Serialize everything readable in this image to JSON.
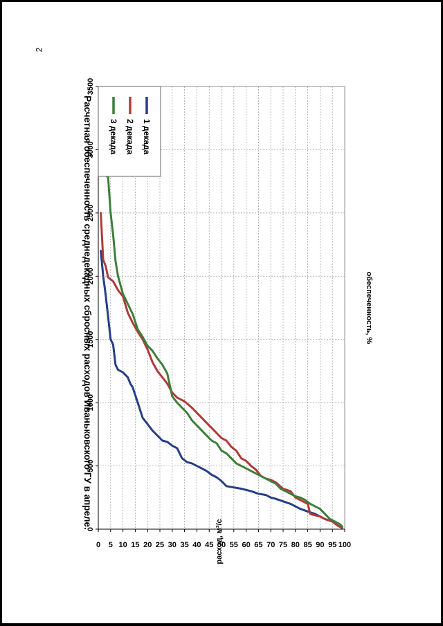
{
  "page": {
    "number": "2"
  },
  "colors": {
    "series1": "#253E86",
    "series2": "#B03A3A",
    "series3": "#3E7E3A",
    "grid": "#9A9A9A"
  },
  "chart_data": {
    "type": "line",
    "title": "Расчетная обеспеченность среднедекадных сбросных расходов Иваньковского ГУ в апреле.",
    "xlabel": "обеспеченность, %",
    "ylabel": "расход, м³/с",
    "xlim": [
      0,
      100
    ],
    "ylim": [
      0,
      3500
    ],
    "xticks": [
      "0",
      "5",
      "10",
      "15",
      "20",
      "25",
      "30",
      "35",
      "40",
      "45",
      "50",
      "55",
      "60",
      "65",
      "70",
      "75",
      "80",
      "85",
      "90",
      "95",
      "100"
    ],
    "yticks": [
      "0",
      "500",
      "1000",
      "1500",
      "2000",
      "2500",
      "3000",
      "3500"
    ],
    "grid": true,
    "legend_position": "top-right",
    "series": [
      {
        "name": "1 декада",
        "x": [
          1,
          2,
          3,
          4,
          5,
          6,
          7,
          8,
          10,
          12,
          13,
          14,
          15,
          16,
          18,
          20,
          22,
          24,
          26,
          28,
          30,
          32,
          34,
          36,
          38,
          40,
          42,
          44,
          46,
          48,
          50,
          52,
          55,
          58,
          60,
          62,
          65,
          68,
          70,
          72,
          75,
          78,
          80,
          82,
          85,
          88,
          90,
          92,
          95,
          97,
          99
        ],
        "y": [
          2200,
          2000,
          1850,
          1680,
          1500,
          1460,
          1300,
          1260,
          1240,
          1200,
          1150,
          1120,
          1060,
          1000,
          880,
          830,
          780,
          740,
          700,
          690,
          660,
          640,
          560,
          530,
          520,
          500,
          480,
          460,
          430,
          410,
          380,
          340,
          330,
          320,
          310,
          300,
          280,
          270,
          250,
          240,
          220,
          200,
          180,
          160,
          140,
          120,
          100,
          80,
          60,
          30,
          10
        ]
      },
      {
        "name": "2 декада",
        "x": [
          1,
          2,
          3,
          4,
          6,
          8,
          10,
          12,
          14,
          16,
          18,
          20,
          22,
          24,
          26,
          28,
          30,
          32,
          35,
          38,
          40,
          42,
          44,
          46,
          48,
          50,
          52,
          54,
          56,
          58,
          60,
          62,
          64,
          66,
          68,
          70,
          72,
          75,
          78,
          80,
          82,
          85,
          86,
          88,
          90,
          92,
          95,
          97,
          99
        ],
        "y": [
          2500,
          2130,
          2080,
          1990,
          1960,
          1890,
          1840,
          1710,
          1630,
          1560,
          1500,
          1420,
          1320,
          1250,
          1200,
          1150,
          1080,
          1040,
          1010,
          960,
          920,
          880,
          840,
          800,
          760,
          720,
          700,
          650,
          620,
          560,
          540,
          500,
          470,
          420,
          400,
          390,
          370,
          320,
          300,
          250,
          230,
          200,
          120,
          110,
          100,
          80,
          60,
          30,
          10
        ]
      },
      {
        "name": "3 декада",
        "x": [
          1,
          2,
          3,
          4,
          5,
          6,
          7,
          8,
          10,
          12,
          14,
          16,
          18,
          20,
          22,
          24,
          26,
          28,
          30,
          32,
          34,
          36,
          38,
          40,
          42,
          44,
          46,
          48,
          50,
          52,
          54,
          56,
          58,
          60,
          62,
          64,
          66,
          68,
          70,
          72,
          74,
          76,
          78,
          80,
          82,
          84,
          86,
          88,
          90,
          92,
          94,
          96,
          98,
          99
        ],
        "y": [
          2920,
          2850,
          2800,
          2780,
          2500,
          2330,
          2120,
          2000,
          1860,
          1780,
          1700,
          1580,
          1520,
          1450,
          1410,
          1350,
          1300,
          1230,
          1050,
          1000,
          960,
          920,
          860,
          820,
          780,
          740,
          700,
          680,
          620,
          600,
          560,
          520,
          500,
          480,
          460,
          440,
          420,
          400,
          380,
          360,
          320,
          300,
          280,
          260,
          250,
          230,
          200,
          180,
          160,
          120,
          80,
          60,
          40,
          20
        ]
      }
    ]
  }
}
